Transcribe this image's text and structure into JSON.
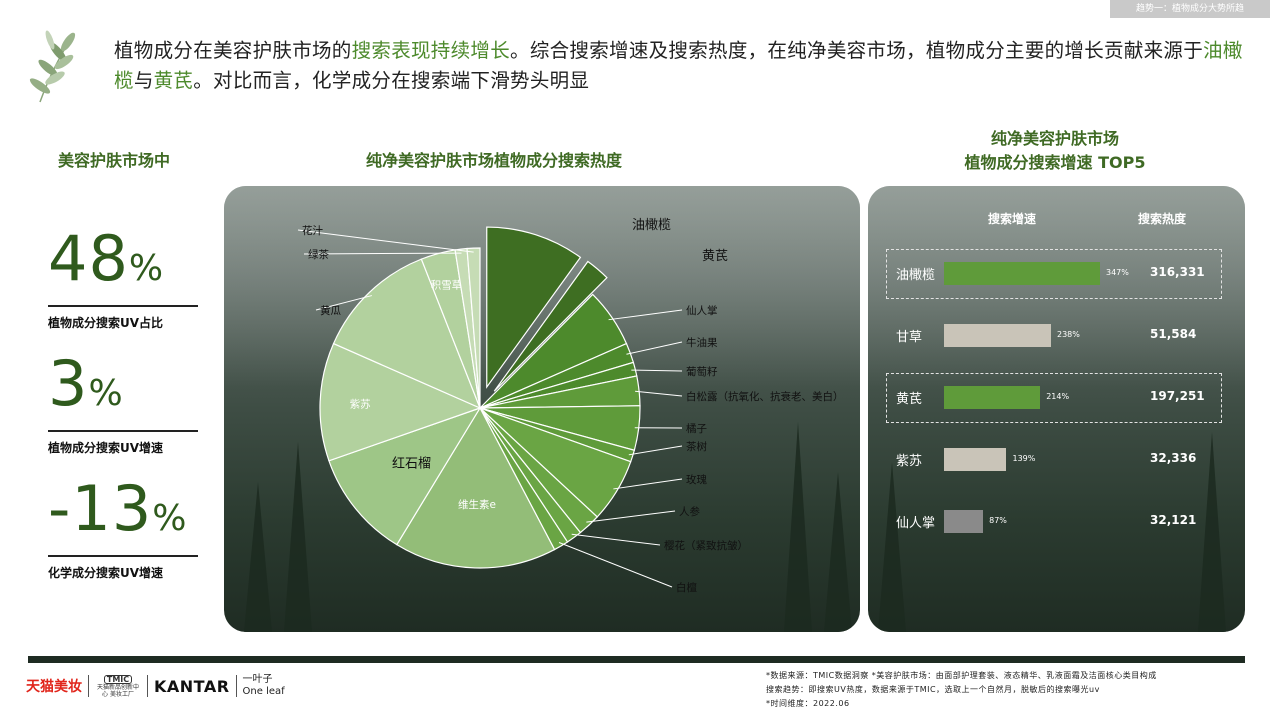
{
  "top_tag": "趋势一：植物成分大势所趋",
  "headline": {
    "p1": "植物成分在美容护肤市场的",
    "h1": "搜索表现持续增长",
    "p2": "。综合搜索增速及搜索热度，在纯净美容市场，植物成分主要的增长贡献来源于",
    "h2": "油橄榄",
    "p3": "与",
    "h3": "黄芪",
    "p4": "。对比而言，化学成分在搜索端下滑势头明显"
  },
  "left_panel": {
    "title": "美容护肤市场中",
    "stats": [
      {
        "value": "48",
        "unit": "%",
        "label": "植物成分搜索UV占比"
      },
      {
        "value": "3",
        "unit": "%",
        "label": "植物成分搜索UV增速"
      },
      {
        "value": "-13",
        "unit": "%",
        "label": "化学成分搜索UV增速"
      }
    ]
  },
  "chart_data": [
    {
      "type": "pie",
      "title": "纯净美容护肤市场植物成分搜索热度",
      "categories": [
        "油橄榄",
        "黄芪",
        "仙人掌",
        "牛油果",
        "葡萄籽",
        "白松露（抗氧化、抗衰老、美白）",
        "橘子",
        "茶树",
        "玫瑰",
        "人参",
        "樱花（紧致抗皱）",
        "白檀",
        "维生素e",
        "红石榴",
        "紫苏",
        "黄瓜",
        "积雪草",
        "绿茶",
        "花汁"
      ],
      "values": [
        10.0,
        2.5,
        6.0,
        2.0,
        1.4,
        3.0,
        4.5,
        1.2,
        6.5,
        2.3,
        1.6,
        1.5,
        16.5,
        11.0,
        12.0,
        12.5,
        3.5,
        1.2,
        1.3
      ],
      "exploded": [
        "油橄榄",
        "黄芪"
      ],
      "colors": [
        "#3e6e22",
        "#3e6e22",
        "#4d8a2c",
        "#4d8a2c",
        "#4d8a2c",
        "#5f9b3a",
        "#5f9b3a",
        "#5f9b3a",
        "#6aa544",
        "#6aa544",
        "#6aa544",
        "#6aa544",
        "#93bd78",
        "#9ec687",
        "#b2d19e",
        "#b2d19e",
        "#b2d19e",
        "#c6dcb5",
        "#c6dcb5"
      ]
    },
    {
      "type": "bar",
      "title_line1": "纯净美容护肤市场",
      "title_line2": "植物成分搜索增速 TOP5",
      "col_growth": "搜索增速",
      "col_heat": "搜索热度",
      "categories": [
        "油橄榄",
        "甘草",
        "黄芪",
        "紫苏",
        "仙人掌"
      ],
      "values": [
        347,
        238,
        214,
        139,
        87
      ],
      "value_labels": [
        "347%",
        "238%",
        "214%",
        "139%",
        "87%"
      ],
      "heat": [
        "316,331",
        "51,584",
        "197,251",
        "32,336",
        "32,121"
      ],
      "highlight": [
        true,
        false,
        true,
        false,
        false
      ],
      "colors": {
        "highlight": "#5f9b3a",
        "normal": "#c9c4b8",
        "low": "#8a8a8a"
      }
    }
  ],
  "footer": {
    "logo_tmall": "天猫美妆",
    "logo_tmic_1": "TMIC",
    "logo_tmic_2": "天猫新品创新中心 美妆工厂",
    "logo_kantar": "KANTAR",
    "logo_oneleaf_1": "一叶子",
    "logo_oneleaf_2": "One leaf",
    "note1": "*数据来源：TMIC数据洞察      *美容护肤市场：由面部护理套装、液态精华、乳液面霜及洁面核心类目构成",
    "note2": "搜索趋势：即搜索UV热度，数据来源于TMIC，选取上一个自然月，脱敏后的搜索曝光uv",
    "note3": "*时间维度：2022.06"
  }
}
